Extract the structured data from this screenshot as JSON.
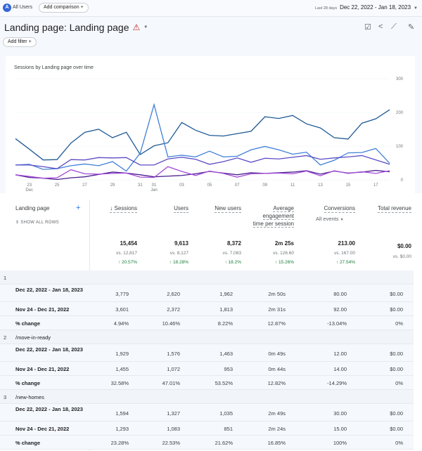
{
  "topbar": {
    "segment_badge": "A",
    "segment": "All Users",
    "add_comparison": "Add comparison",
    "date_label": "Last 28 days",
    "date_range": "Dec 22, 2022 - Jan 18, 2023"
  },
  "header": {
    "title": "Landing page: Landing page",
    "add_filter": "Add filter"
  },
  "chart_data": {
    "type": "line",
    "title": "Sessions by Landing page over time",
    "x": [
      "Dec 22",
      "Dec 23",
      "Dec 24",
      "Dec 25",
      "Dec 26",
      "Dec 27",
      "Dec 28",
      "Dec 29",
      "Dec 30",
      "Dec 31",
      "Jan 01",
      "Jan 02",
      "Jan 03",
      "Jan 04",
      "Jan 05",
      "Jan 06",
      "Jan 07",
      "Jan 08",
      "Jan 09",
      "Jan 10",
      "Jan 11",
      "Jan 12",
      "Jan 13",
      "Jan 14",
      "Jan 15",
      "Jan 16",
      "Jan 17",
      "Jan 18"
    ],
    "xticks": [
      {
        "i": 1,
        "label": "23",
        "sub": "Dec"
      },
      {
        "i": 3,
        "label": "25"
      },
      {
        "i": 5,
        "label": "27"
      },
      {
        "i": 7,
        "label": "29"
      },
      {
        "i": 9,
        "label": "31"
      },
      {
        "i": 10,
        "label": "01",
        "sub": "Jan"
      },
      {
        "i": 12,
        "label": "03"
      },
      {
        "i": 14,
        "label": "05"
      },
      {
        "i": 16,
        "label": "07"
      },
      {
        "i": 18,
        "label": "09"
      },
      {
        "i": 20,
        "label": "11"
      },
      {
        "i": 22,
        "label": "13"
      },
      {
        "i": 24,
        "label": "15"
      },
      {
        "i": 26,
        "label": "17"
      }
    ],
    "yticks": [
      0,
      100,
      200,
      300
    ],
    "ylim": [
      0,
      300
    ],
    "grid": true,
    "series": [
      {
        "color": "#1f5a96",
        "values": [
          122,
          91,
          59,
          60,
          109,
          141,
          150,
          125,
          141,
          75,
          101,
          110,
          170,
          147,
          132,
          130,
          137,
          144,
          187,
          182,
          191,
          166,
          154,
          125,
          121,
          168,
          181,
          208
        ]
      },
      {
        "color": "#3f7fd9",
        "values": [
          44,
          46,
          31,
          33,
          42,
          47,
          42,
          54,
          26,
          79,
          223,
          68,
          73,
          68,
          85,
          68,
          70,
          89,
          99,
          89,
          76,
          82,
          44,
          58,
          80,
          81,
          93,
          49
        ]
      },
      {
        "color": "#5b4cc4",
        "values": [
          44,
          44,
          39,
          33,
          60,
          59,
          66,
          65,
          66,
          44,
          44,
          62,
          67,
          61,
          46,
          54,
          65,
          52,
          64,
          62,
          67,
          72,
          61,
          65,
          68,
          72,
          59,
          46
        ]
      },
      {
        "color": "#4b1e8f",
        "values": [
          15,
          7,
          5,
          1,
          6,
          9,
          16,
          23,
          20,
          15,
          9,
          11,
          13,
          18,
          25,
          20,
          15,
          21,
          19,
          21,
          23,
          27,
          17,
          26,
          20,
          23,
          28,
          24
        ]
      },
      {
        "color": "#a24ad8",
        "values": [
          15,
          10,
          5,
          6,
          30,
          18,
          17,
          19,
          20,
          8,
          7,
          39,
          25,
          13,
          26,
          19,
          8,
          18,
          19,
          20,
          18,
          26,
          12,
          27,
          19,
          24,
          19,
          27
        ]
      }
    ]
  },
  "table": {
    "dimension": "Landing page",
    "show_all_rows": "SHOW ALL ROWS",
    "columns": [
      "Sessions",
      "Users",
      "New users",
      "Average engagement time per session",
      "Conversions",
      "Total revenue"
    ],
    "conversions_filter": "All events",
    "totals": [
      "15,454",
      "9,613",
      "8,372",
      "2m 25s",
      "213.00",
      "$0.00"
    ],
    "totals_vs": [
      "vs. 12,817",
      "vs. 8,127",
      "vs. 7,083",
      "vs. 126.60",
      "vs. 167.00",
      "vs. $0.00"
    ],
    "totals_change": [
      "↑ 20.57%",
      "↑ 18.28%",
      "↑ 18.2%",
      "↑ 15.26%",
      "↑ 27.54%",
      ""
    ],
    "groups": [
      {
        "index": "1",
        "page": "",
        "rows": [
          {
            "label": "Dec 22, 2022 - Jan 18, 2023",
            "values": [
              "3,779",
              "2,620",
              "1,962",
              "2m 50s",
              "80.00",
              "$0.00"
            ]
          },
          {
            "label": "Nov 24 - Dec 21, 2022",
            "values": [
              "3,601",
              "2,372",
              "1,813",
              "2m 31s",
              "92.00",
              "$0.00"
            ]
          },
          {
            "label": "% change",
            "values": [
              "4.94%",
              "10.46%",
              "8.22%",
              "12.87%",
              "-13.04%",
              "0%"
            ]
          }
        ]
      },
      {
        "index": "2",
        "page": "/move-in-ready",
        "rows": [
          {
            "label": "Dec 22, 2022 - Jan 18, 2023",
            "values": [
              "1,929",
              "1,576",
              "1,463",
              "0m 49s",
              "12.00",
              "$0.00"
            ]
          },
          {
            "label": "Nov 24 - Dec 21, 2022",
            "values": [
              "1,455",
              "1,072",
              "953",
              "0m 44s",
              "14.00",
              "$0.00"
            ]
          },
          {
            "label": "% change",
            "values": [
              "32.58%",
              "47.01%",
              "53.52%",
              "12.82%",
              "-14.29%",
              "0%"
            ]
          }
        ]
      },
      {
        "index": "3",
        "page": "/new-homes",
        "rows": [
          {
            "label": "Dec 22, 2022 - Jan 18, 2023",
            "values": [
              "1,594",
              "1,327",
              "1,035",
              "2m 49s",
              "30.00",
              "$0.00"
            ]
          },
          {
            "label": "Nov 24 - Dec 21, 2022",
            "values": [
              "1,293",
              "1,083",
              "851",
              "2m 24s",
              "15.00",
              "$0.00"
            ]
          },
          {
            "label": "% change",
            "values": [
              "23.28%",
              "22.53%",
              "21.62%",
              "16.85%",
              "100%",
              "0%"
            ]
          }
        ]
      }
    ]
  }
}
